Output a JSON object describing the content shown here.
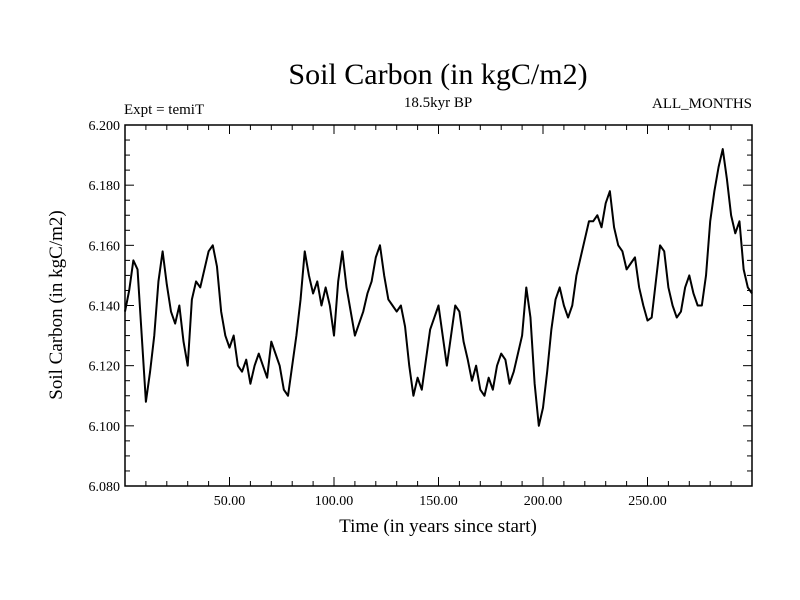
{
  "chart_data": {
    "type": "line",
    "title": "Soil Carbon (in kgC/m2)",
    "left_label": "Expt = temiT",
    "center_label": "18.5kyr BP",
    "right_label": "ALL_MONTHS",
    "xlabel": "Time (in years since start)",
    "ylabel": "Soil Carbon (in kgC/m2)",
    "xlim": [
      0,
      300
    ],
    "ylim": [
      6.08,
      6.2
    ],
    "x_ticks": [
      50,
      100,
      150,
      200,
      250
    ],
    "x_tick_labels": [
      "50.00",
      "100.00",
      "150.00",
      "200.00",
      "250.00"
    ],
    "y_ticks": [
      6.08,
      6.1,
      6.12,
      6.14,
      6.16,
      6.18,
      6.2
    ],
    "y_tick_labels": [
      "6.080",
      "6.100",
      "6.120",
      "6.140",
      "6.160",
      "6.180",
      "6.200"
    ],
    "series": [
      {
        "name": "Soil Carbon",
        "x": [
          0,
          2,
          4,
          6,
          8,
          10,
          12,
          14,
          16,
          18,
          20,
          22,
          24,
          26,
          28,
          30,
          32,
          34,
          36,
          38,
          40,
          42,
          44,
          46,
          48,
          50,
          52,
          54,
          56,
          58,
          60,
          62,
          64,
          66,
          68,
          70,
          72,
          74,
          76,
          78,
          80,
          82,
          84,
          86,
          88,
          90,
          92,
          94,
          96,
          98,
          100,
          102,
          104,
          106,
          108,
          110,
          112,
          114,
          116,
          118,
          120,
          122,
          124,
          126,
          128,
          130,
          132,
          134,
          136,
          138,
          140,
          142,
          144,
          146,
          148,
          150,
          152,
          154,
          156,
          158,
          160,
          162,
          164,
          166,
          168,
          170,
          172,
          174,
          176,
          178,
          180,
          182,
          184,
          186,
          188,
          190,
          192,
          194,
          196,
          198,
          200,
          202,
          204,
          206,
          208,
          210,
          212,
          214,
          216,
          218,
          220,
          222,
          224,
          226,
          228,
          230,
          232,
          234,
          236,
          238,
          240,
          242,
          244,
          246,
          248,
          250,
          252,
          254,
          256,
          258,
          260,
          262,
          264,
          266,
          268,
          270,
          272,
          274,
          276,
          278,
          280,
          282,
          284,
          286,
          288,
          290,
          292,
          294,
          296,
          298,
          300
        ],
        "y": [
          6.138,
          6.145,
          6.155,
          6.152,
          6.13,
          6.108,
          6.118,
          6.13,
          6.148,
          6.158,
          6.147,
          6.138,
          6.134,
          6.14,
          6.128,
          6.12,
          6.142,
          6.148,
          6.146,
          6.152,
          6.158,
          6.16,
          6.153,
          6.138,
          6.13,
          6.126,
          6.13,
          6.12,
          6.118,
          6.122,
          6.114,
          6.12,
          6.124,
          6.12,
          6.116,
          6.128,
          6.124,
          6.12,
          6.112,
          6.11,
          6.12,
          6.13,
          6.142,
          6.158,
          6.15,
          6.144,
          6.148,
          6.14,
          6.146,
          6.14,
          6.13,
          6.148,
          6.158,
          6.146,
          6.138,
          6.13,
          6.134,
          6.138,
          6.144,
          6.148,
          6.156,
          6.16,
          6.15,
          6.142,
          6.14,
          6.138,
          6.14,
          6.133,
          6.12,
          6.11,
          6.116,
          6.112,
          6.122,
          6.132,
          6.136,
          6.14,
          6.13,
          6.12,
          6.13,
          6.14,
          6.138,
          6.128,
          6.122,
          6.115,
          6.12,
          6.112,
          6.11,
          6.116,
          6.112,
          6.12,
          6.124,
          6.122,
          6.114,
          6.118,
          6.124,
          6.13,
          6.146,
          6.136,
          6.114,
          6.1,
          6.106,
          6.118,
          6.132,
          6.142,
          6.146,
          6.14,
          6.136,
          6.14,
          6.15,
          6.156,
          6.162,
          6.168,
          6.168,
          6.17,
          6.166,
          6.174,
          6.178,
          6.166,
          6.16,
          6.158,
          6.152,
          6.154,
          6.156,
          6.146,
          6.14,
          6.135,
          6.136,
          6.148,
          6.16,
          6.158,
          6.146,
          6.14,
          6.136,
          6.138,
          6.146,
          6.15,
          6.144,
          6.14,
          6.14,
          6.15,
          6.168,
          6.178,
          6.186,
          6.192,
          6.182,
          6.17,
          6.164,
          6.168,
          6.152,
          6.146,
          6.144
        ]
      }
    ]
  }
}
